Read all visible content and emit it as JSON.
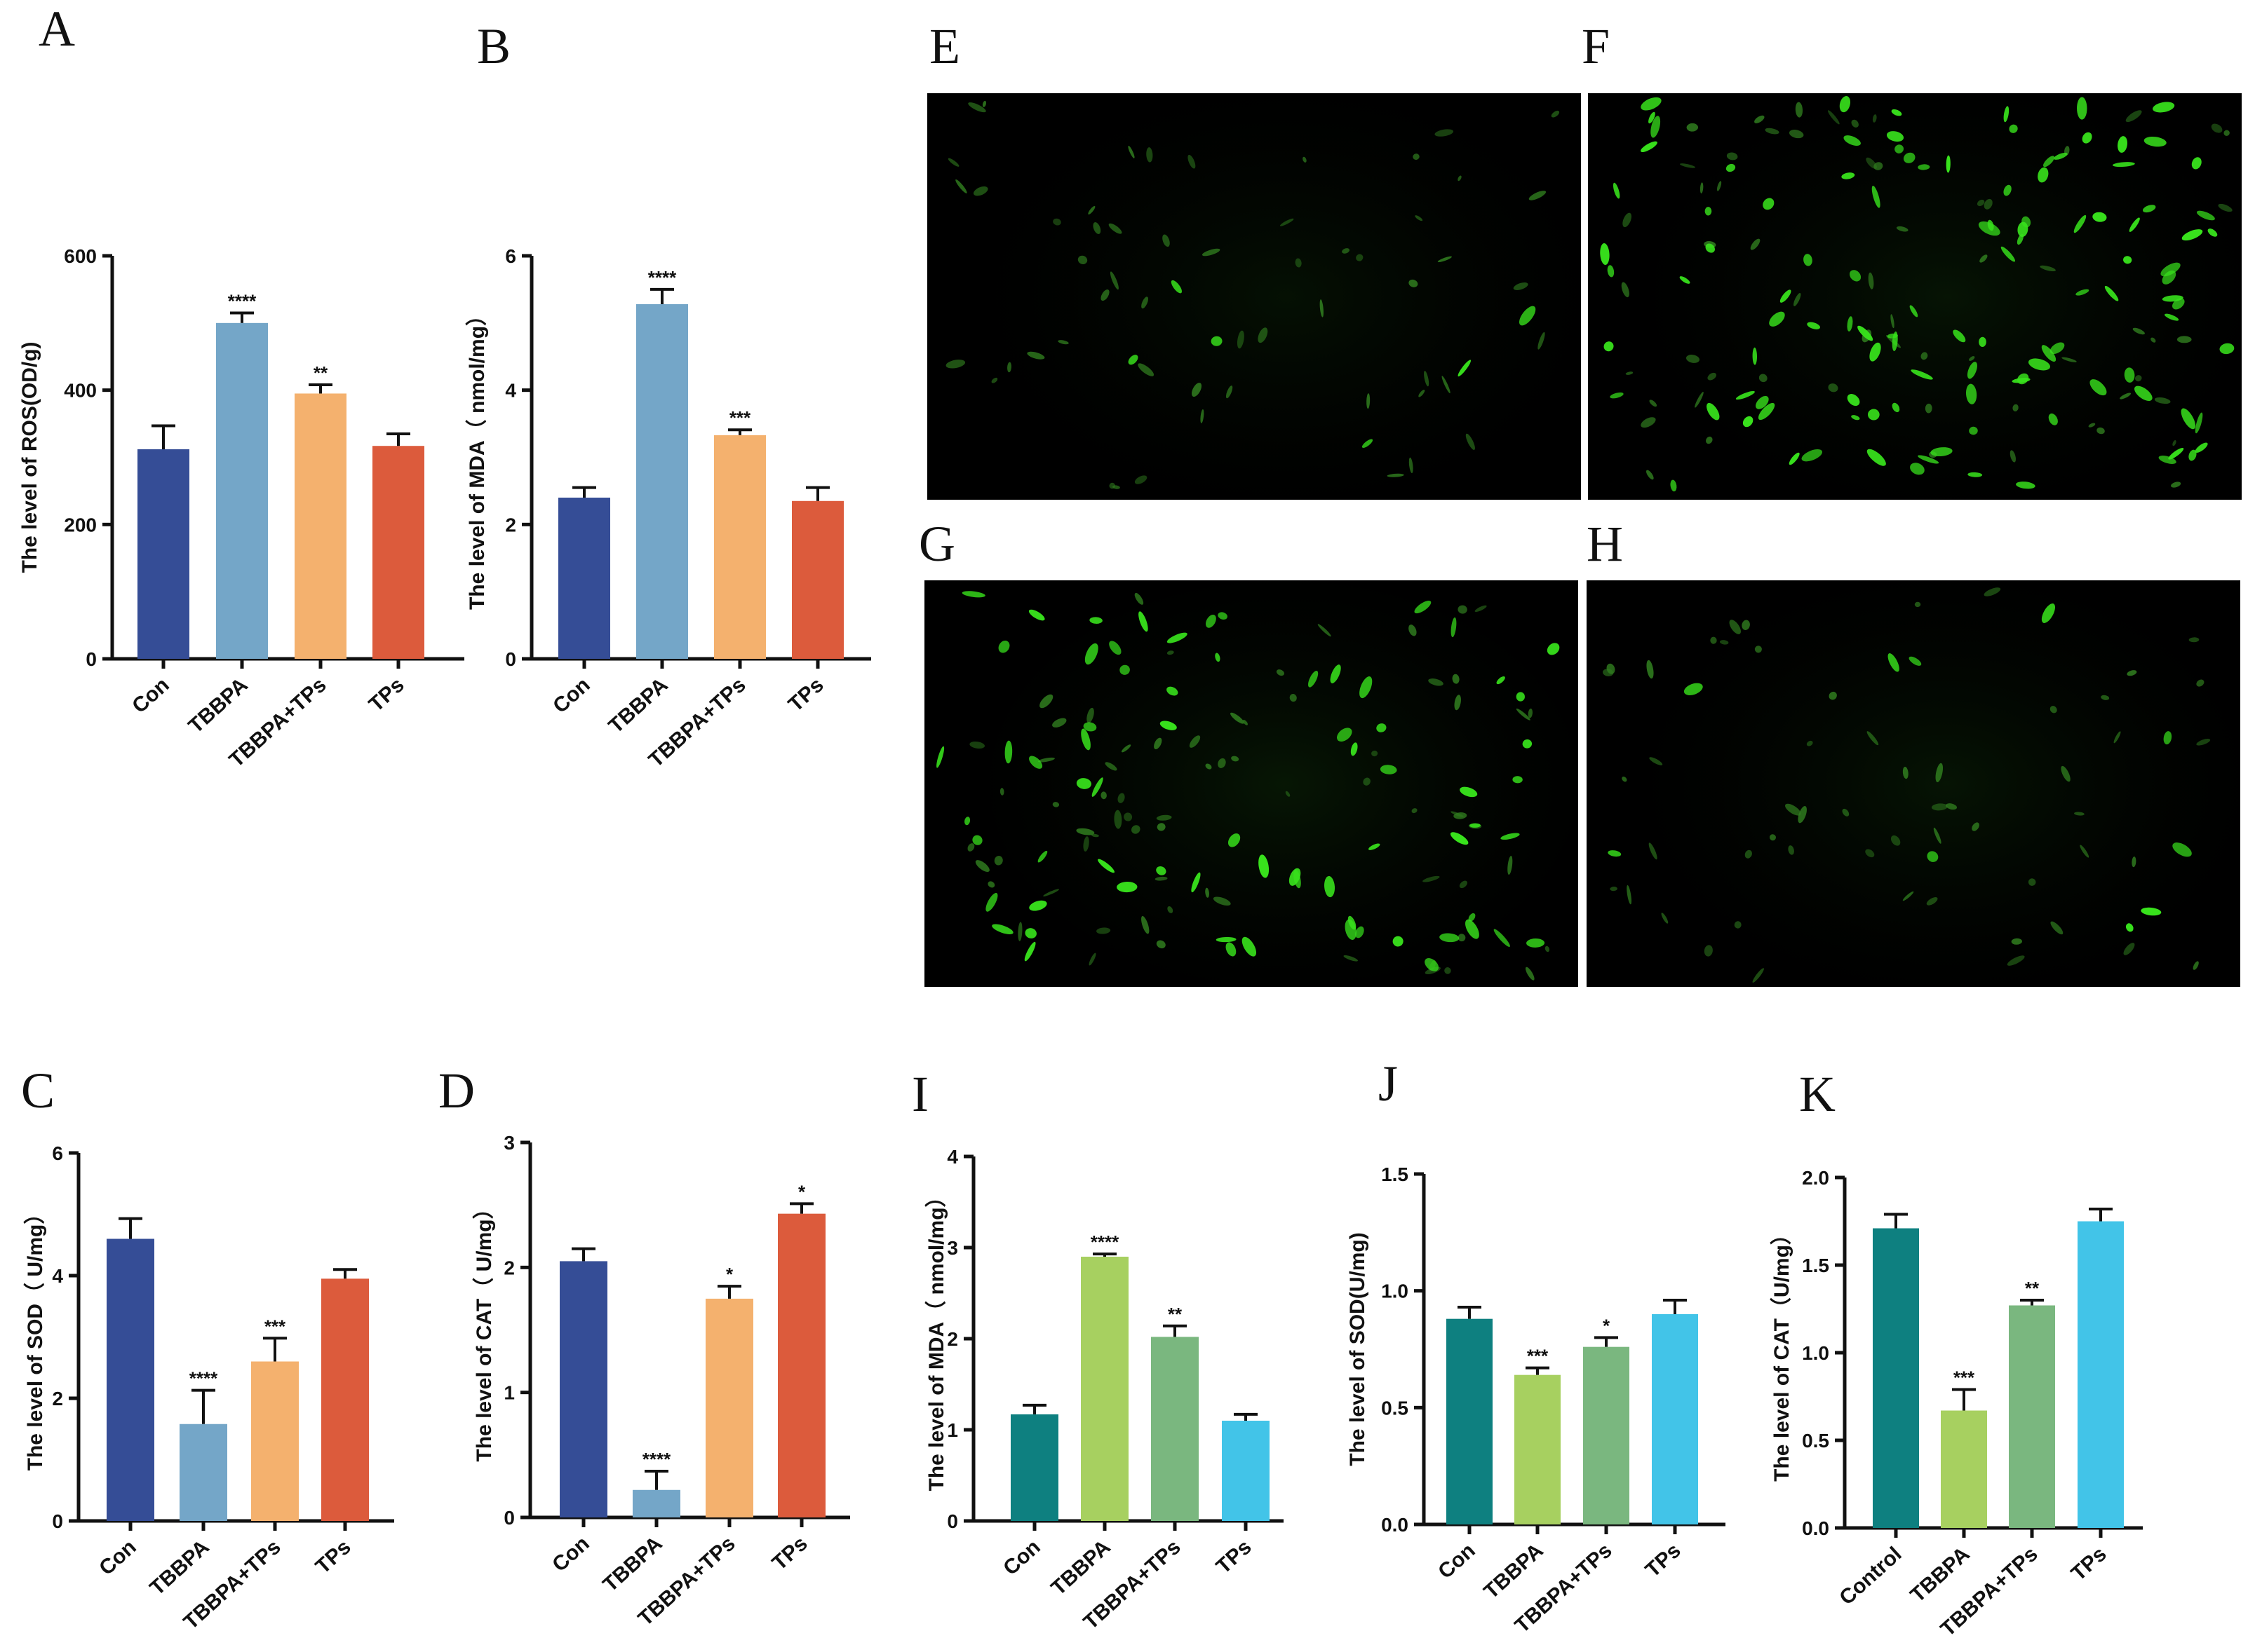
{
  "figure": {
    "micrographs": [
      {
        "letter": "E",
        "seed": 11,
        "bright_cells": 6,
        "dim_cells": 55,
        "glow": 0.18
      },
      {
        "letter": "F",
        "seed": 23,
        "bright_cells": 110,
        "dim_cells": 60,
        "glow": 0.22
      },
      {
        "letter": "G",
        "seed": 37,
        "bright_cells": 70,
        "dim_cells": 70,
        "glow": 0.25
      },
      {
        "letter": "H",
        "seed": 41,
        "bright_cells": 10,
        "dim_cells": 55,
        "glow": 0.22
      }
    ]
  },
  "chart_data": [
    {
      "panel": "A",
      "type": "bar",
      "categories": [
        "Con",
        "TBBPA",
        "TBBPA+TPs",
        "TPs"
      ],
      "values": [
        312,
        500,
        395,
        317
      ],
      "errors": [
        35,
        15,
        13,
        18
      ],
      "significance": [
        "",
        "****",
        "**",
        ""
      ],
      "colors": [
        "#354d96",
        "#74a6c8",
        "#f4b16e",
        "#dc5b3c"
      ],
      "ylabel": "The level of ROS(OD/g)",
      "ylim": [
        0,
        600
      ],
      "yticks": [
        "0",
        "200",
        "400",
        "600"
      ]
    },
    {
      "panel": "B",
      "type": "bar",
      "categories": [
        "Con",
        "TBBPA",
        "TBBPA+TPs",
        "TPs"
      ],
      "values": [
        2.4,
        5.28,
        3.33,
        2.35
      ],
      "errors": [
        0.15,
        0.22,
        0.08,
        0.2
      ],
      "significance": [
        "",
        "****",
        "***",
        ""
      ],
      "colors": [
        "#354d96",
        "#74a6c8",
        "#f4b16e",
        "#dc5b3c"
      ],
      "ylabel": "The level of MDA（ nmol/mg）",
      "ylim": [
        0,
        6
      ],
      "yticks": [
        "0",
        "2",
        "4",
        "6"
      ]
    },
    {
      "panel": "C",
      "type": "bar",
      "categories": [
        "Con",
        "TBBPA",
        "TBBPA+TPs",
        "TPs"
      ],
      "values": [
        4.6,
        1.58,
        2.6,
        3.95
      ],
      "errors": [
        0.33,
        0.55,
        0.38,
        0.15
      ],
      "significance": [
        "",
        "****",
        "***",
        ""
      ],
      "colors": [
        "#354d96",
        "#74a6c8",
        "#f4b16e",
        "#dc5b3c"
      ],
      "ylabel": "The level of SOD（ U/mg）",
      "ylim": [
        0,
        6
      ],
      "yticks": [
        "0",
        "2",
        "4",
        "6"
      ]
    },
    {
      "panel": "D",
      "type": "bar",
      "categories": [
        "Con",
        "TBBPA",
        "TBBPA+TPs",
        "TPs"
      ],
      "values": [
        2.05,
        0.22,
        1.75,
        2.43
      ],
      "errors": [
        0.1,
        0.15,
        0.1,
        0.08
      ],
      "significance": [
        "",
        "****",
        "*",
        "*"
      ],
      "colors": [
        "#354d96",
        "#74a6c8",
        "#f4b16e",
        "#dc5b3c"
      ],
      "ylabel": "The level of CAT（ U/mg）",
      "ylim": [
        0,
        3
      ],
      "yticks": [
        "0",
        "1",
        "2",
        "3"
      ]
    },
    {
      "panel": "I",
      "type": "bar",
      "categories": [
        "Con",
        "TBBPA",
        "TBBPA+TPs",
        "TPs"
      ],
      "values": [
        1.17,
        2.9,
        2.02,
        1.1
      ],
      "errors": [
        0.1,
        0.03,
        0.12,
        0.07
      ],
      "significance": [
        "",
        "****",
        "**",
        ""
      ],
      "colors": [
        "#0e8080",
        "#a7d060",
        "#7ab77f",
        "#42c4e8"
      ],
      "ylabel": "The level of MDA（ nmol/mg）",
      "ylim": [
        0,
        4
      ],
      "yticks": [
        "0",
        "1",
        "2",
        "3",
        "4"
      ]
    },
    {
      "panel": "J",
      "type": "bar",
      "categories": [
        "Con",
        "TBBPA",
        "TBBPA+TPs",
        "TPs"
      ],
      "values": [
        0.88,
        0.64,
        0.76,
        0.9
      ],
      "errors": [
        0.05,
        0.03,
        0.04,
        0.06
      ],
      "significance": [
        "",
        "***",
        "*",
        ""
      ],
      "colors": [
        "#0e8080",
        "#a7d060",
        "#7ab77f",
        "#42c4e8"
      ],
      "ylabel": "The level of SOD(U/mg)",
      "ylim": [
        0,
        1.5
      ],
      "yticks": [
        "0.0",
        "0.5",
        "1.0",
        "1.5"
      ]
    },
    {
      "panel": "K",
      "type": "bar",
      "categories": [
        "Control",
        "TBBPA",
        "TBBPA+TPs",
        "TPs"
      ],
      "values": [
        1.71,
        0.67,
        1.27,
        1.75
      ],
      "errors": [
        0.08,
        0.12,
        0.03,
        0.07
      ],
      "significance": [
        "",
        "***",
        "**",
        ""
      ],
      "colors": [
        "#0e8080",
        "#a7d060",
        "#7ab77f",
        "#42c4e8"
      ],
      "ylabel": "The level of CAT（U/mg）",
      "ylim": [
        0,
        2
      ],
      "yticks": [
        "0.0",
        "0.5",
        "1.0",
        "1.5",
        "2.0"
      ]
    }
  ]
}
